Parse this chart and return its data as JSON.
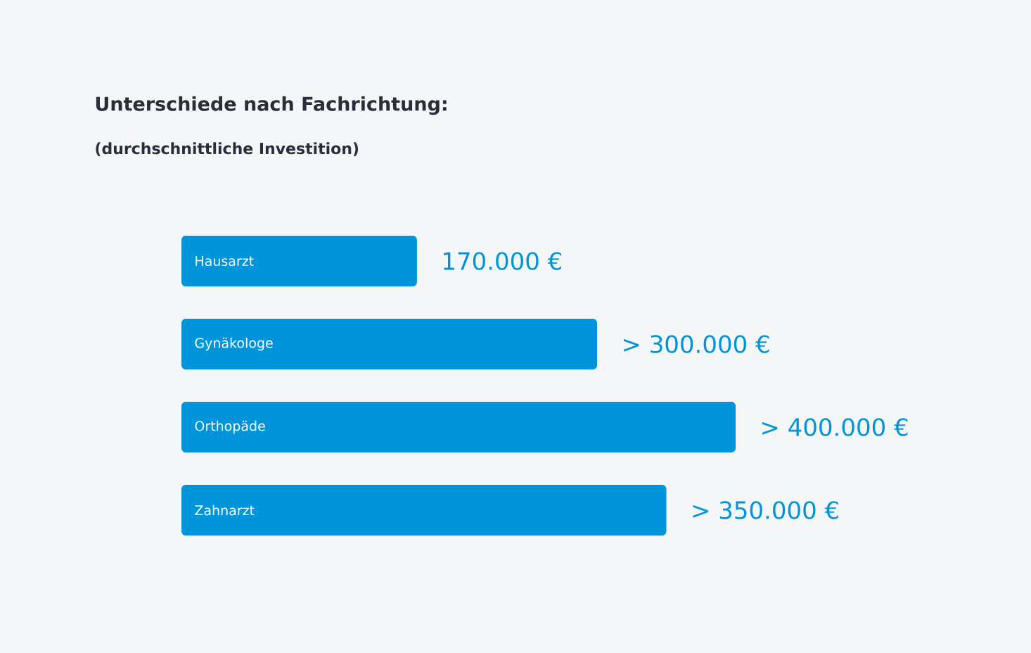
{
  "chart_data": {
    "type": "bar",
    "orientation": "horizontal",
    "tick_labels": false,
    "title": "Unterschiede nach Fachrichtung:",
    "subtitle": "(durchschnittliche Investition)",
    "categories": [
      "Hausarzt",
      "Gynäkologe",
      "Orthopäde",
      "Zahnarzt"
    ],
    "values": [
      170000,
      300000,
      400000,
      350000
    ],
    "value_labels": [
      "170.000 €",
      "> 300.000 €",
      "> 400.000 €",
      "> 350.000 €"
    ],
    "color": "#0095da"
  }
}
